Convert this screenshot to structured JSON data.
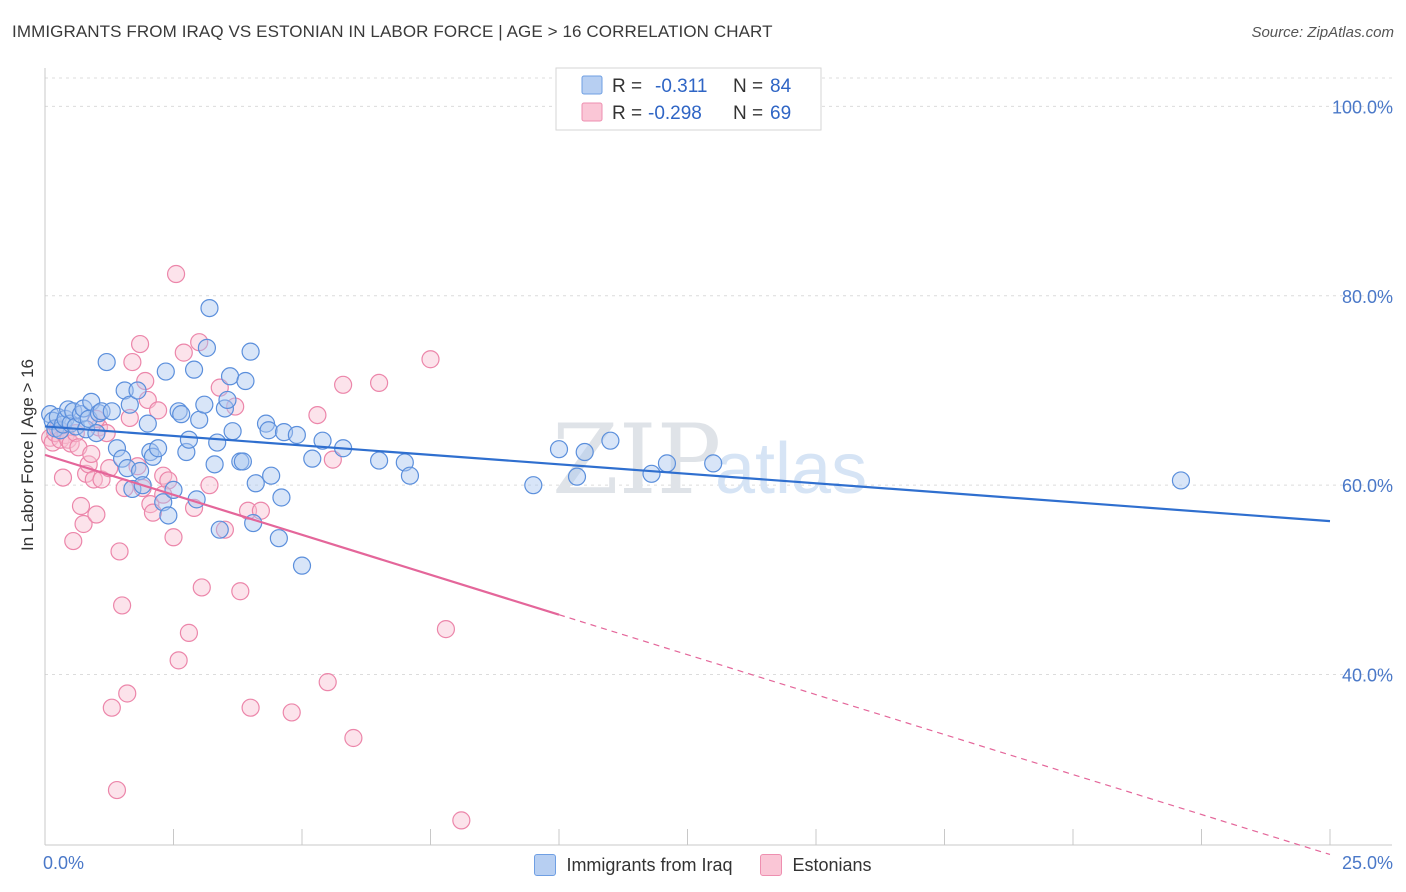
{
  "title": "IMMIGRANTS FROM IRAQ VS ESTONIAN IN LABOR FORCE | AGE > 16 CORRELATION CHART",
  "source": "Source: ZipAtlas.com",
  "watermark": {
    "zip": "ZIP",
    "atlas": "atlas"
  },
  "legend": {
    "series": [
      {
        "r_label": "R =",
        "r_value": "-0.311",
        "n_label": "N =",
        "n_value": "84",
        "fill": "#b7cff2",
        "stroke": "#6f9fe3"
      },
      {
        "r_label": "R =",
        "r_value": "-0.298",
        "n_label": "N =",
        "n_value": "69",
        "fill": "#fac6d6",
        "stroke": "#ee8fb0"
      }
    ]
  },
  "bottom_legend": [
    {
      "label": "Immigrants from Iraq",
      "fill": "#b7cff2",
      "stroke": "#6f9fe3"
    },
    {
      "label": "Estonians",
      "fill": "#fac6d6",
      "stroke": "#ee8fb0"
    }
  ],
  "chart_data": {
    "type": "scatter",
    "ylabel": "In Labor Force | Age > 16",
    "xlim": [
      0,
      25
    ],
    "ylim": [
      22,
      103
    ],
    "x_tick_labels": [
      "0.0%",
      "25.0%"
    ],
    "y_ticks": [
      {
        "value": 100,
        "label": "100.0%"
      },
      {
        "value": 80,
        "label": "80.0%"
      },
      {
        "value": 60,
        "label": "60.0%"
      },
      {
        "value": 40,
        "label": "40.0%"
      }
    ],
    "grid": true,
    "colors": {
      "iraq_fill": "#a9c6f0",
      "iraq_stroke": "#5b8fdc",
      "iraq_line": "#2f6fcf",
      "est_fill": "#f9c0d3",
      "est_stroke": "#ec86aa",
      "est_line": "#e4669a"
    },
    "series": [
      {
        "name": "Immigrants from Iraq",
        "trend": {
          "x0": 0,
          "y0": 66.2,
          "x1": 25,
          "y1": 56.2,
          "dashed_from": null
        },
        "points": [
          [
            0.1,
            67.5
          ],
          [
            0.15,
            66.8
          ],
          [
            0.2,
            66.0
          ],
          [
            0.25,
            67.2
          ],
          [
            0.3,
            65.8
          ],
          [
            0.35,
            66.4
          ],
          [
            0.4,
            67.0
          ],
          [
            0.45,
            68.0
          ],
          [
            0.5,
            66.5
          ],
          [
            0.55,
            67.8
          ],
          [
            0.6,
            66.2
          ],
          [
            0.7,
            67.5
          ],
          [
            0.75,
            68.1
          ],
          [
            0.8,
            65.9
          ],
          [
            0.85,
            67.0
          ],
          [
            0.9,
            68.8
          ],
          [
            1.0,
            65.5
          ],
          [
            1.05,
            67.6
          ],
          [
            1.1,
            67.8
          ],
          [
            1.2,
            73.0
          ],
          [
            1.3,
            67.8
          ],
          [
            1.4,
            63.9
          ],
          [
            1.5,
            62.8
          ],
          [
            1.55,
            70.0
          ],
          [
            1.6,
            61.8
          ],
          [
            1.65,
            68.5
          ],
          [
            1.7,
            59.6
          ],
          [
            1.8,
            70.0
          ],
          [
            1.85,
            61.5
          ],
          [
            1.9,
            60.0
          ],
          [
            2.0,
            66.5
          ],
          [
            2.05,
            63.5
          ],
          [
            2.1,
            63.0
          ],
          [
            2.2,
            63.9
          ],
          [
            2.3,
            58.2
          ],
          [
            2.35,
            72.0
          ],
          [
            2.4,
            56.8
          ],
          [
            2.5,
            59.5
          ],
          [
            2.6,
            67.8
          ],
          [
            2.65,
            67.5
          ],
          [
            2.75,
            63.5
          ],
          [
            2.8,
            64.8
          ],
          [
            2.9,
            72.2
          ],
          [
            2.95,
            58.5
          ],
          [
            3.0,
            66.9
          ],
          [
            3.1,
            68.5
          ],
          [
            3.15,
            74.5
          ],
          [
            3.2,
            78.7
          ],
          [
            3.3,
            62.2
          ],
          [
            3.35,
            64.5
          ],
          [
            3.4,
            55.3
          ],
          [
            3.5,
            68.1
          ],
          [
            3.55,
            69.0
          ],
          [
            3.6,
            71.5
          ],
          [
            3.65,
            65.7
          ],
          [
            3.8,
            62.5
          ],
          [
            3.85,
            62.5
          ],
          [
            3.9,
            71.0
          ],
          [
            4.0,
            74.1
          ],
          [
            4.05,
            56.0
          ],
          [
            4.1,
            60.2
          ],
          [
            4.3,
            66.5
          ],
          [
            4.35,
            65.8
          ],
          [
            4.4,
            61.0
          ],
          [
            4.55,
            54.4
          ],
          [
            4.6,
            58.7
          ],
          [
            4.65,
            65.6
          ],
          [
            4.9,
            65.3
          ],
          [
            5.0,
            51.5
          ],
          [
            5.2,
            62.8
          ],
          [
            5.4,
            64.7
          ],
          [
            5.8,
            63.9
          ],
          [
            6.5,
            62.6
          ],
          [
            7.0,
            62.4
          ],
          [
            7.1,
            61.0
          ],
          [
            9.5,
            60.0
          ],
          [
            10.0,
            63.8
          ],
          [
            10.35,
            60.9
          ],
          [
            10.5,
            63.5
          ],
          [
            11.0,
            64.7
          ],
          [
            11.8,
            61.2
          ],
          [
            12.1,
            62.3
          ],
          [
            13.0,
            62.3
          ],
          [
            22.1,
            60.5
          ]
        ]
      },
      {
        "name": "Estonians",
        "trend": {
          "x0": 0,
          "y0": 63.2,
          "x1": 25,
          "y1": 21.0,
          "dashed_from": 10
        },
        "points": [
          [
            0.1,
            65.0
          ],
          [
            0.15,
            64.5
          ],
          [
            0.2,
            65.5
          ],
          [
            0.25,
            66.0
          ],
          [
            0.3,
            64.8
          ],
          [
            0.35,
            60.8
          ],
          [
            0.4,
            65.3
          ],
          [
            0.45,
            64.8
          ],
          [
            0.5,
            64.4
          ],
          [
            0.55,
            54.1
          ],
          [
            0.6,
            65.5
          ],
          [
            0.65,
            64.0
          ],
          [
            0.7,
            57.8
          ],
          [
            0.75,
            55.9
          ],
          [
            0.8,
            61.2
          ],
          [
            0.85,
            62.2
          ],
          [
            0.9,
            63.3
          ],
          [
            0.95,
            60.6
          ],
          [
            1.0,
            56.9
          ],
          [
            1.05,
            66.1
          ],
          [
            1.1,
            60.6
          ],
          [
            1.2,
            65.5
          ],
          [
            1.25,
            61.8
          ],
          [
            1.3,
            36.5
          ],
          [
            1.4,
            27.8
          ],
          [
            1.45,
            53.0
          ],
          [
            1.5,
            47.3
          ],
          [
            1.55,
            59.7
          ],
          [
            1.6,
            38.0
          ],
          [
            1.65,
            67.1
          ],
          [
            1.7,
            73.0
          ],
          [
            1.8,
            62.0
          ],
          [
            1.85,
            74.9
          ],
          [
            1.9,
            59.7
          ],
          [
            1.95,
            71.0
          ],
          [
            2.0,
            69.0
          ],
          [
            2.05,
            58.0
          ],
          [
            2.1,
            57.1
          ],
          [
            2.2,
            67.9
          ],
          [
            2.3,
            61.0
          ],
          [
            2.4,
            60.5
          ],
          [
            2.5,
            54.5
          ],
          [
            2.55,
            82.3
          ],
          [
            2.6,
            41.5
          ],
          [
            2.7,
            74.0
          ],
          [
            2.8,
            44.4
          ],
          [
            2.9,
            57.6
          ],
          [
            3.0,
            75.1
          ],
          [
            3.05,
            49.2
          ],
          [
            3.2,
            60.0
          ],
          [
            3.4,
            70.3
          ],
          [
            3.5,
            55.3
          ],
          [
            3.7,
            68.3
          ],
          [
            3.8,
            48.8
          ],
          [
            3.95,
            57.3
          ],
          [
            4.0,
            36.5
          ],
          [
            4.2,
            57.3
          ],
          [
            4.8,
            36.0
          ],
          [
            5.3,
            67.4
          ],
          [
            5.5,
            39.2
          ],
          [
            5.6,
            62.7
          ],
          [
            5.8,
            70.6
          ],
          [
            6.0,
            33.3
          ],
          [
            6.5,
            70.8
          ],
          [
            7.5,
            73.3
          ],
          [
            7.8,
            44.8
          ],
          [
            8.1,
            24.6
          ],
          [
            2.3,
            59.0
          ],
          [
            1.0,
            67.0
          ]
        ]
      }
    ]
  }
}
